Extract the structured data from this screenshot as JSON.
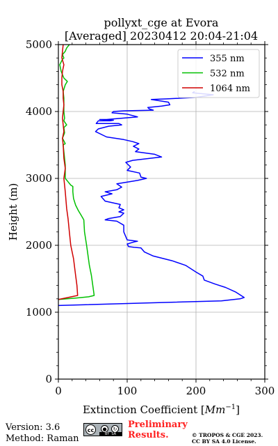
{
  "chart_data": {
    "type": "line",
    "title": "pollyxt_cge at Evora",
    "subtitle": "[Averaged] 20230412 20:04-21:04",
    "xlabel": "Extinction Coefficient [",
    "xlabel_unit": "Mm",
    "xlabel_sup": "−1",
    "xlabel_end": "]",
    "ylabel": "Height (m)",
    "xlim": [
      0,
      300
    ],
    "ylim": [
      0,
      5000
    ],
    "xticks": [
      0,
      100,
      200,
      300
    ],
    "yticks": [
      0,
      1000,
      2000,
      3000,
      4000,
      5000
    ],
    "grid": true,
    "legend_position": "top-right",
    "series": [
      {
        "name": "355 nm",
        "color": "#0000ff",
        "points": [
          [
            0,
            1100
          ],
          [
            237,
            1170
          ],
          [
            264,
            1200
          ],
          [
            270,
            1220
          ],
          [
            258,
            1300
          ],
          [
            243,
            1370
          ],
          [
            228,
            1420
          ],
          [
            212,
            1480
          ],
          [
            210,
            1540
          ],
          [
            200,
            1600
          ],
          [
            185,
            1700
          ],
          [
            165,
            1770
          ],
          [
            138,
            1840
          ],
          [
            125,
            1900
          ],
          [
            120,
            1960
          ],
          [
            110,
            1970
          ],
          [
            102,
            1980
          ],
          [
            100,
            2020
          ],
          [
            110,
            2050
          ],
          [
            115,
            2060
          ],
          [
            100,
            2080
          ],
          [
            95,
            2200
          ],
          [
            95,
            2300
          ],
          [
            85,
            2360
          ],
          [
            68,
            2380
          ],
          [
            73,
            2400
          ],
          [
            90,
            2430
          ],
          [
            95,
            2480
          ],
          [
            88,
            2500
          ],
          [
            95,
            2530
          ],
          [
            88,
            2560
          ],
          [
            90,
            2610
          ],
          [
            68,
            2660
          ],
          [
            62,
            2730
          ],
          [
            78,
            2770
          ],
          [
            68,
            2800
          ],
          [
            85,
            2830
          ],
          [
            92,
            2870
          ],
          [
            85,
            2920
          ],
          [
            115,
            2970
          ],
          [
            128,
            3000
          ],
          [
            120,
            3020
          ],
          [
            118,
            3080
          ],
          [
            100,
            3120
          ],
          [
            105,
            3170
          ],
          [
            98,
            3240
          ],
          [
            108,
            3270
          ],
          [
            150,
            3320
          ],
          [
            140,
            3360
          ],
          [
            112,
            3400
          ],
          [
            117,
            3440
          ],
          [
            109,
            3480
          ],
          [
            117,
            3520
          ],
          [
            108,
            3550
          ],
          [
            95,
            3580
          ],
          [
            70,
            3620
          ],
          [
            54,
            3700
          ],
          [
            58,
            3740
          ],
          [
            73,
            3780
          ],
          [
            92,
            3800
          ],
          [
            88,
            3820
          ],
          [
            55,
            3820
          ],
          [
            58,
            3860
          ],
          [
            75,
            3860
          ],
          [
            80,
            3870
          ],
          [
            60,
            3880
          ],
          [
            70,
            3880
          ],
          [
            115,
            3920
          ],
          [
            100,
            3960
          ],
          [
            78,
            3980
          ],
          [
            80,
            4000
          ],
          [
            96,
            4010
          ],
          [
            138,
            4020
          ],
          [
            132,
            4040
          ],
          [
            130,
            4060
          ],
          [
            150,
            4080
          ],
          [
            162,
            4100
          ],
          [
            160,
            4140
          ],
          [
            135,
            4180
          ],
          [
            160,
            4190
          ],
          [
            200,
            4210
          ],
          [
            225,
            4250
          ],
          [
            195,
            4280
          ],
          [
            198,
            4300
          ]
        ]
      },
      {
        "name": "532 nm",
        "color": "#00c000",
        "points": [
          [
            0,
            1190
          ],
          [
            25,
            1210
          ],
          [
            44,
            1230
          ],
          [
            52,
            1250
          ],
          [
            50,
            1400
          ],
          [
            48,
            1550
          ],
          [
            45,
            1700
          ],
          [
            41,
            2000
          ],
          [
            38,
            2200
          ],
          [
            37,
            2380
          ],
          [
            33,
            2450
          ],
          [
            29,
            2520
          ],
          [
            25,
            2600
          ],
          [
            22,
            2700
          ],
          [
            21,
            2800
          ],
          [
            21,
            2880
          ],
          [
            18,
            2900
          ],
          [
            14,
            2950
          ],
          [
            10,
            3000
          ],
          [
            10,
            3200
          ],
          [
            8,
            3400
          ],
          [
            7,
            3500
          ],
          [
            10,
            3520
          ],
          [
            8,
            3560
          ],
          [
            6,
            3600
          ],
          [
            9,
            3680
          ],
          [
            8,
            3760
          ],
          [
            12,
            3800
          ],
          [
            8,
            3860
          ],
          [
            9,
            3900
          ],
          [
            8,
            4000
          ],
          [
            8,
            4100
          ],
          [
            8,
            4200
          ],
          [
            7,
            4300
          ],
          [
            10,
            4400
          ],
          [
            13,
            4450
          ],
          [
            8,
            4500
          ],
          [
            4,
            4600
          ],
          [
            2,
            4700
          ],
          [
            6,
            4780
          ],
          [
            8,
            4800
          ],
          [
            6,
            4850
          ],
          [
            10,
            4900
          ],
          [
            12,
            4950
          ],
          [
            16,
            5000
          ]
        ]
      },
      {
        "name": "1064 nm",
        "color": "#d00000",
        "points": [
          [
            0,
            1190
          ],
          [
            28,
            1250
          ],
          [
            27,
            1400
          ],
          [
            25,
            1550
          ],
          [
            22,
            1800
          ],
          [
            18,
            2000
          ],
          [
            16,
            2200
          ],
          [
            14,
            2400
          ],
          [
            12,
            2550
          ],
          [
            10,
            2800
          ],
          [
            8,
            3000
          ],
          [
            10,
            3150
          ],
          [
            8,
            3300
          ],
          [
            7,
            3500
          ],
          [
            6,
            3600
          ],
          [
            8,
            3700
          ],
          [
            7,
            3800
          ],
          [
            6,
            3900
          ],
          [
            7,
            4000
          ],
          [
            8,
            4100
          ],
          [
            7,
            4200
          ],
          [
            7,
            4300
          ],
          [
            5,
            4400
          ],
          [
            5,
            4500
          ],
          [
            6,
            4600
          ],
          [
            8,
            4700
          ],
          [
            5,
            4800
          ],
          [
            6,
            4900
          ],
          [
            7,
            5000
          ]
        ]
      }
    ]
  },
  "footer": {
    "version": "Version: 3.6",
    "method": "Method: Raman",
    "prelim_line1": "Preliminary",
    "prelim_line2": "Results.",
    "copyright_line1": "© TROPOS & CGE 2023.",
    "copyright_line2": "CC BY SA 4.0 License."
  },
  "license_badge": {
    "cc": "cc",
    "by": "BY",
    "sa": "SA"
  }
}
